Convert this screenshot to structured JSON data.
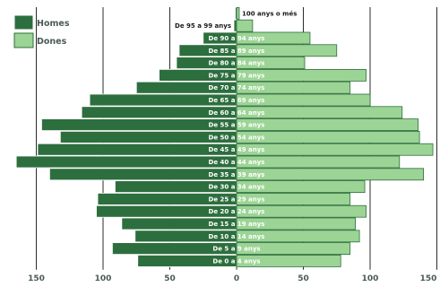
{
  "chart_data": {
    "type": "bar",
    "orientation": "horizontal",
    "layout": "population-pyramid",
    "categories": [
      "De 0 a 4 anys",
      "De 5 a 9 anys",
      "De 10 a 14 anys",
      "De 15 a 19 anys",
      "De 20 a 24 anys",
      "De 25 a 29 anys",
      "De 30 a 34 anys",
      "De 35 a 39 anys",
      "De 40 a 44 anys",
      "De 45 a 49 anys",
      "De 50 a 54 anys",
      "De 55 a 59 anys",
      "De 60 a 64 anys",
      "De 65 a 69 anys",
      "De 70 a 74 anys",
      "De 75 a 79 anys",
      "De 80 a 84 anys",
      "De 85 a 89 anys",
      "De 90 a 94 anys",
      "De 95 a 99 anys",
      "100 anys o més"
    ],
    "series": [
      {
        "name": "Homes",
        "color": "#2d6e3e",
        "side": "left",
        "values": [
          74,
          93,
          76,
          86,
          105,
          104,
          91,
          140,
          165,
          149,
          132,
          146,
          116,
          110,
          75,
          58,
          45,
          43,
          25,
          2,
          1
        ]
      },
      {
        "name": "Dones",
        "color": "#9cd495",
        "side": "right",
        "values": [
          78,
          85,
          92,
          89,
          97,
          85,
          96,
          140,
          122,
          147,
          137,
          136,
          124,
          100,
          85,
          97,
          51,
          75,
          55,
          12,
          2
        ]
      }
    ],
    "xticks": [
      "150",
      "100",
      "50",
      "0",
      "50",
      "100",
      "150"
    ],
    "xlim": [
      -165,
      150
    ],
    "grid": "vertical",
    "legend_position": "top-left"
  }
}
